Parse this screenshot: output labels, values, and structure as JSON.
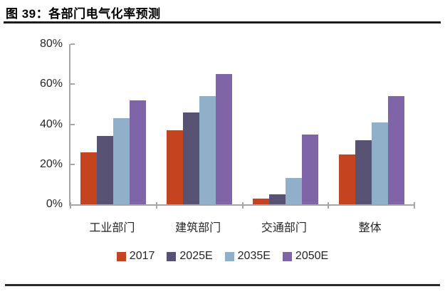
{
  "figure": {
    "title": "图 39：各部门电气化率预测"
  },
  "chart_data": {
    "type": "bar",
    "title": "各部门电气化率预测",
    "categories": [
      "工业部门",
      "建筑部门",
      "交通部门",
      "整体"
    ],
    "series": [
      {
        "name": "2017",
        "color": "#c5431f",
        "values": [
          26,
          37,
          3,
          25
        ]
      },
      {
        "name": "2025E",
        "color": "#575273",
        "values": [
          34,
          46,
          5,
          32
        ]
      },
      {
        "name": "2035E",
        "color": "#8fb0c8",
        "values": [
          43,
          54,
          13,
          41
        ]
      },
      {
        "name": "2050E",
        "color": "#8064a8",
        "values": [
          52,
          65,
          35,
          54
        ]
      }
    ],
    "ylim": [
      0,
      80
    ],
    "ytick_values": [
      0,
      20,
      40,
      60,
      80
    ],
    "ytick_labels": [
      "0%",
      "20%",
      "40%",
      "60%",
      "80%"
    ],
    "xlabel": "",
    "ylabel": "",
    "grid": false,
    "legend_position": "bottom",
    "axis_color": "#a6a6a6",
    "text_color": "#262626",
    "rule_color": "#1d1d1d"
  }
}
